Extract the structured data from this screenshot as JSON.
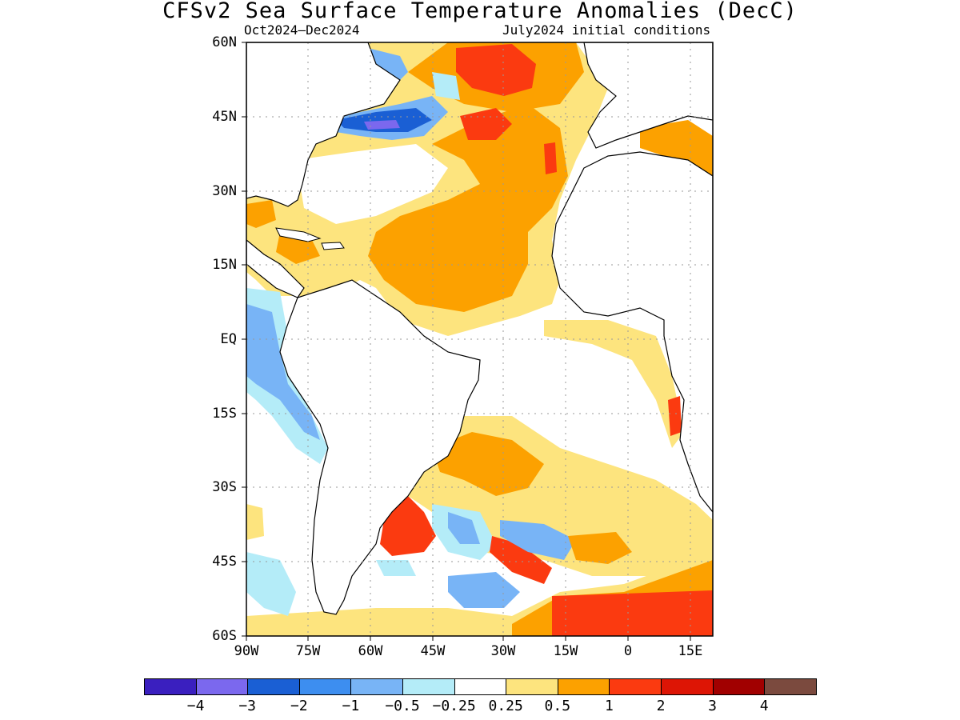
{
  "title": "CFSv2 Sea Surface Temperature Anomalies (DecC)",
  "subtitle_left": "Oct2024–Dec2024",
  "subtitle_right": "July2024 initial conditions",
  "lat_labels": [
    "60N",
    "45N",
    "30N",
    "15N",
    "EQ",
    "15S",
    "30S",
    "45S",
    "60S"
  ],
  "lon_labels": [
    "90W",
    "75W",
    "60W",
    "45W",
    "30W",
    "15W",
    "0",
    "15E"
  ],
  "colorbar": {
    "colors": [
      "#3a1fbf",
      "#7b68ee",
      "#1a5fd4",
      "#3d8ef0",
      "#78b4f6",
      "#b4ecf8",
      "#ffffff",
      "#fde47e",
      "#fca100",
      "#fb3a10",
      "#dd1505",
      "#a10000",
      "#7b4a3e"
    ],
    "labels": [
      "−4",
      "−3",
      "−2",
      "−1",
      "−0.5",
      "−0.25",
      "0.25",
      "0.5",
      "1",
      "2",
      "3",
      "4"
    ]
  },
  "palette": {
    "land": "#ffffff",
    "ocean_neutral": "#ffffff",
    "weak_warm": "#fde47e",
    "warm": "#fca100",
    "hot": "#fb3a10",
    "weak_cool": "#b4ecf8",
    "cool": "#78b4f6",
    "cold": "#3d8ef0",
    "colder": "#1a5fd4",
    "coldest": "#7b68ee"
  }
}
